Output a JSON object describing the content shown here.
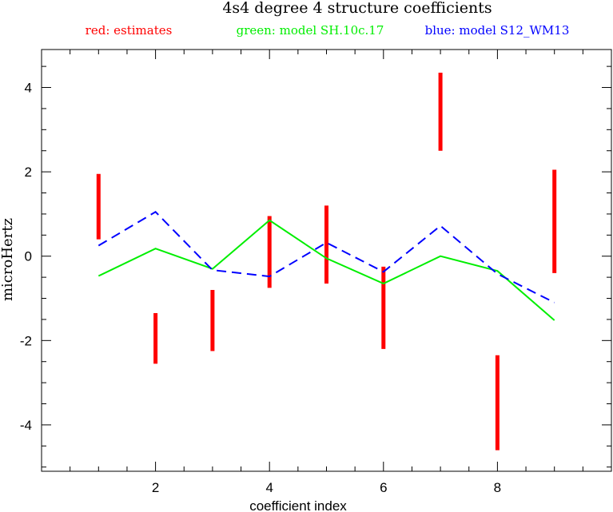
{
  "chart_data": {
    "type": "line",
    "title": "4s4 degree 4 structure coefficients",
    "xlabel": "coefficient index",
    "ylabel": "microHertz",
    "xlim": [
      0,
      10
    ],
    "ylim": [
      -5.1,
      4.9
    ],
    "x_ticks_major": [
      2,
      4,
      6,
      8
    ],
    "y_ticks_major": [
      -4,
      -2,
      0,
      2,
      4
    ],
    "grid": false,
    "legend_placement": "top",
    "legend": [
      {
        "text": "red: estimates",
        "color": "#ff0000"
      },
      {
        "text": "green: model SH.10c.17",
        "color": "#00ee00"
      },
      {
        "text": "blue: model S12_WM13",
        "color": "#0000ff"
      }
    ],
    "estimates": {
      "name": "estimates",
      "color": "#ff0000",
      "x": [
        1,
        2,
        3,
        4,
        5,
        6,
        7,
        8,
        9
      ],
      "low": [
        0.4,
        -2.55,
        -2.25,
        -0.75,
        -0.65,
        -2.2,
        2.5,
        -4.6,
        -0.4
      ],
      "high": [
        1.95,
        -1.35,
        -0.8,
        0.95,
        1.2,
        -0.25,
        4.35,
        -2.35,
        2.05
      ]
    },
    "series": [
      {
        "name": "model SH.10c.17",
        "color": "#00ee00",
        "dash": false,
        "x": [
          1,
          2,
          3,
          4,
          5,
          6,
          7,
          8,
          9
        ],
        "values": [
          -0.47,
          0.18,
          -0.3,
          0.85,
          -0.05,
          -0.65,
          0.0,
          -0.35,
          -1.52
        ]
      },
      {
        "name": "model S12_WM13",
        "color": "#0000ff",
        "dash": true,
        "x": [
          1,
          2,
          3,
          4,
          5,
          6,
          7,
          8,
          9
        ],
        "values": [
          0.25,
          1.05,
          -0.33,
          -0.48,
          0.32,
          -0.37,
          0.72,
          -0.42,
          -1.1
        ]
      }
    ]
  }
}
